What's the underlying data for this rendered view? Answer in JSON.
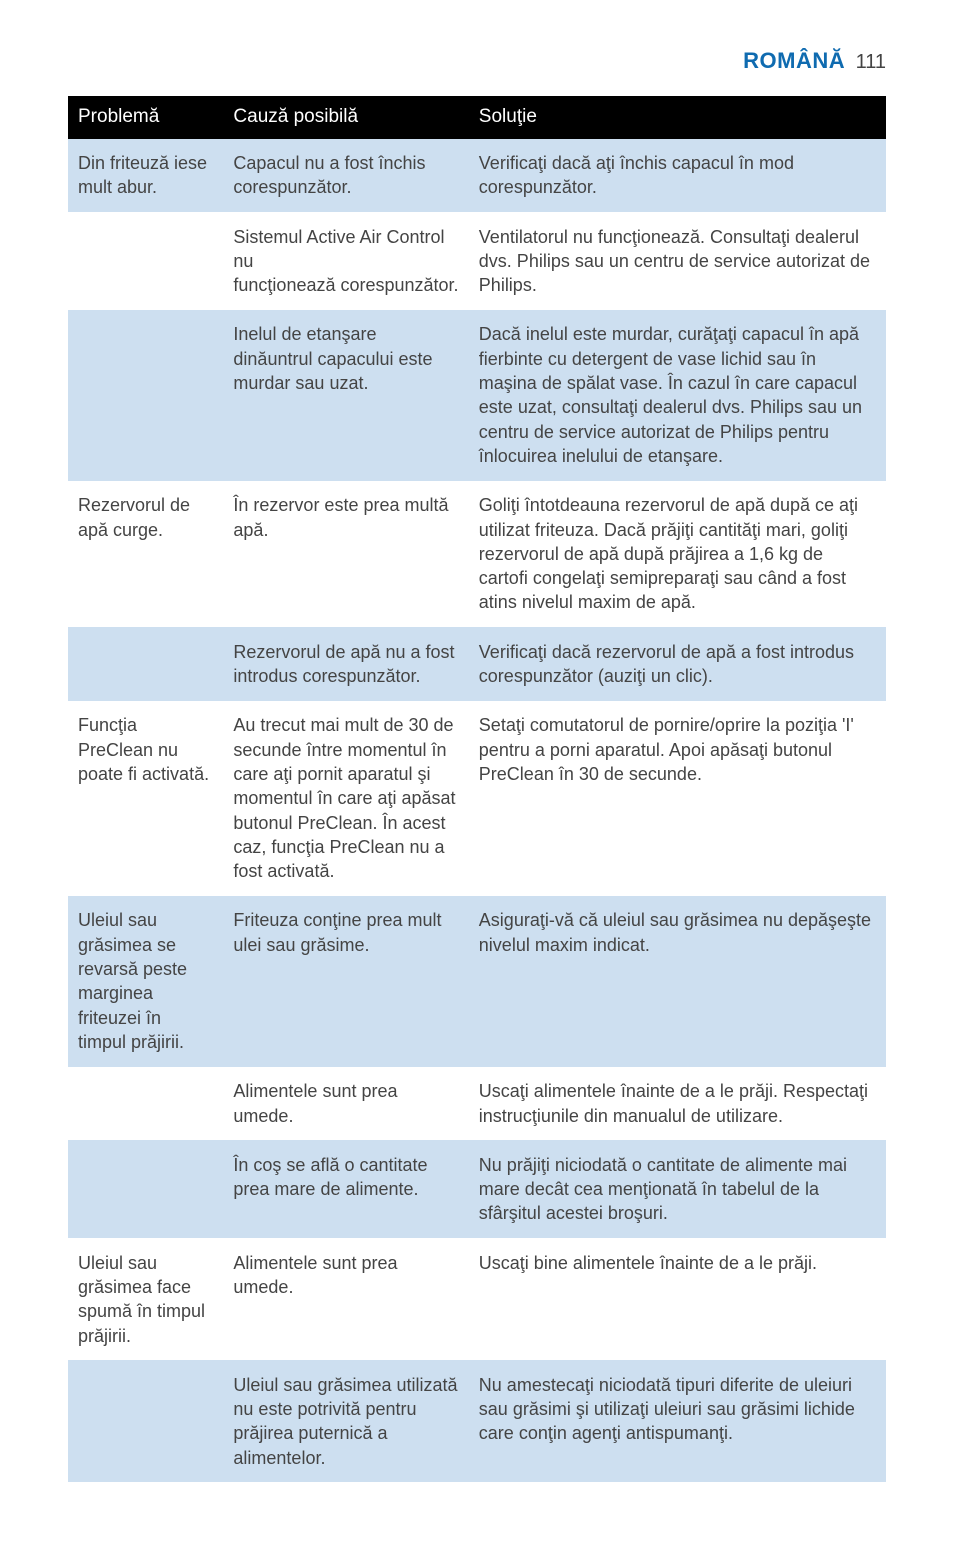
{
  "colors": {
    "page_bg": "#ffffff",
    "header_bg": "#000000",
    "header_text": "#ffffff",
    "accent_blue": "#0f6bb0",
    "body_text": "#444444",
    "row_alt_bg": "#cddff0",
    "row_bg": "#ffffff",
    "pagenum_text": "#444444"
  },
  "type": "table",
  "typography": {
    "header_lang_fontsize": 22,
    "header_pagenum_fontsize": 20,
    "thead_fontsize": 19,
    "body_fontsize": 18
  },
  "header": {
    "language": "ROMÂNĂ",
    "page_number": "111"
  },
  "table": {
    "columns": [
      "Problemă",
      "Cauză posibilă",
      "Soluţie"
    ],
    "col_widths_pct": [
      19,
      30,
      51
    ],
    "rows": [
      {
        "alt": true,
        "problem": "Din friteuză iese mult abur.",
        "cause": "Capacul nu a fost închis corespunzător.",
        "solution": "Verificaţi dacă aţi închis capacul în mod corespunzător."
      },
      {
        "alt": false,
        "problem": "",
        "cause": "Sistemul Active Air Control nu\nfuncţionează corespunzător.",
        "solution": "Ventilatorul nu funcţionează. Consultaţi dealerul dvs. Philips sau un centru de service autorizat de Philips."
      },
      {
        "alt": true,
        "problem": "",
        "cause": "Inelul de etanşare dinăuntrul capacului este murdar sau uzat.",
        "solution": "Dacă inelul este murdar, curăţaţi capacul în apă fierbinte cu detergent de vase lichid sau în maşina de spălat vase. În cazul în care capacul este uzat, consultaţi dealerul dvs. Philips sau un centru de service autorizat de Philips pentru înlocuirea inelului de etanşare."
      },
      {
        "alt": false,
        "problem": "Rezervorul de apă curge.",
        "cause": "În rezervor este prea multă apă.",
        "solution": "Goliţi întotdeauna rezervorul de apă după ce aţi utilizat friteuza. Dacă prăjiţi cantităţi mari, goliţi rezervorul de apă după prăjirea a 1,6 kg de cartofi congelaţi semipreparaţi sau când a fost atins nivelul maxim de apă."
      },
      {
        "alt": true,
        "problem": "",
        "cause": "Rezervorul de apă nu a fost introdus corespunzător.",
        "solution": "Verificaţi dacă rezervorul de apă a fost introdus corespunzător (auziţi un clic)."
      },
      {
        "alt": false,
        "problem": "Funcţia PreClean nu poate fi activată.",
        "cause": "Au trecut mai mult de 30 de secunde între momentul în care aţi pornit aparatul şi momentul în care aţi apăsat butonul PreClean. În acest caz, funcţia PreClean nu a fost activată.",
        "solution": "Setaţi comutatorul de pornire/oprire la poziţia 'I' pentru a porni aparatul. Apoi apăsaţi butonul PreClean în 30 de secunde."
      },
      {
        "alt": true,
        "problem": "Uleiul sau grăsimea se revarsă peste marginea friteuzei în timpul prăjirii.",
        "cause": "Friteuza conţine prea mult ulei sau grăsime.",
        "solution": "Asiguraţi-vă că uleiul sau grăsimea nu depăşeşte nivelul maxim indicat."
      },
      {
        "alt": false,
        "problem": "",
        "cause": "Alimentele sunt prea umede.",
        "solution": "Uscaţi alimentele înainte de a le prăji. Respectaţi instrucţiunile din manualul de utilizare."
      },
      {
        "alt": true,
        "problem": "",
        "cause": "În coş se află o cantitate prea mare de alimente.",
        "solution": "Nu prăjiţi niciodată o cantitate de alimente mai mare decât cea menţionată în tabelul de la sfârşitul acestei broşuri."
      },
      {
        "alt": false,
        "problem": "Uleiul sau grăsimea face spumă în timpul prăjirii.",
        "cause": "Alimentele sunt prea umede.",
        "solution": "Uscaţi bine alimentele înainte de a le prăji."
      },
      {
        "alt": true,
        "problem": "",
        "cause": "Uleiul sau grăsimea utilizată nu este potrivită pentru prăjirea puternică a alimentelor.",
        "solution": "Nu amestecaţi niciodată tipuri diferite de uleiuri sau grăsimi şi utilizaţi uleiuri sau grăsimi lichide care conţin agenţi antispumanţi."
      }
    ]
  }
}
